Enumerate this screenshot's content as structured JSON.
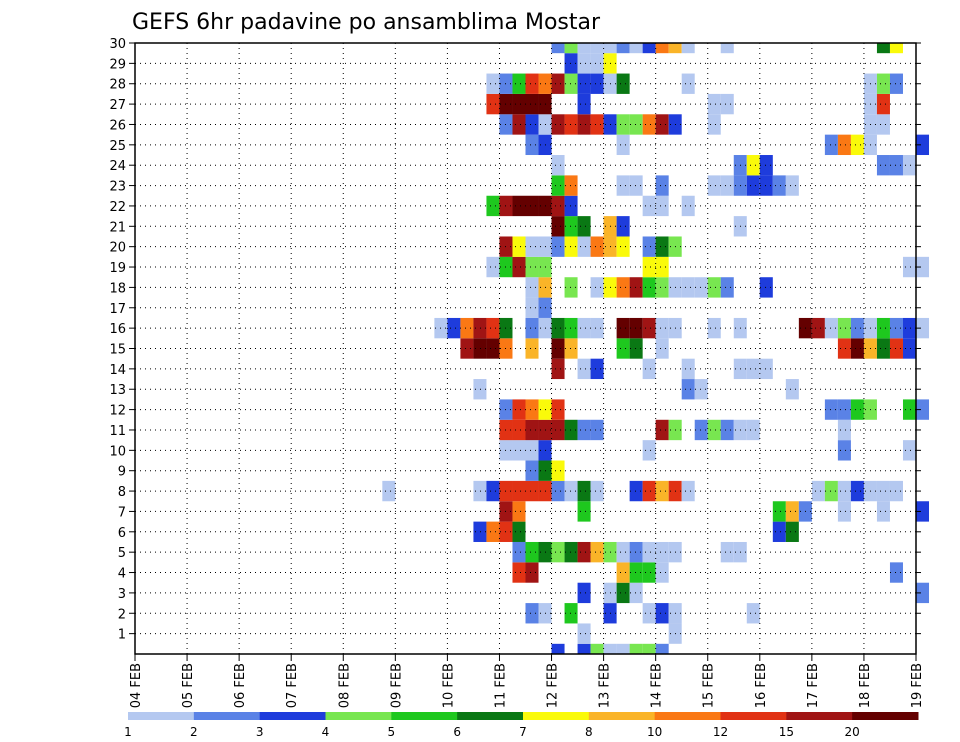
{
  "chart_data": {
    "type": "heatmap",
    "title": "GEFS 6hr padavine po ansamblima Mostar",
    "xlabel": "",
    "ylabel": "",
    "x_tick_labels": [
      "04 FEB",
      "05 FEB",
      "06 FEB",
      "07 FEB",
      "08 FEB",
      "09 FEB",
      "10 FEB",
      "11 FEB",
      "12 FEB",
      "13 FEB",
      "14 FEB",
      "15 FEB",
      "16 FEB",
      "17 FEB",
      "18 FEB",
      "19 FEB"
    ],
    "x_range_days": [
      0,
      15
    ],
    "y_tick_labels": [
      "1",
      "2",
      "3",
      "4",
      "5",
      "6",
      "7",
      "8",
      "9",
      "10",
      "11",
      "12",
      "13",
      "14",
      "15",
      "16",
      "17",
      "18",
      "19",
      "20",
      "21",
      "22",
      "23",
      "24",
      "25",
      "26",
      "27",
      "28",
      "29",
      "30"
    ],
    "y_range": [
      0,
      30
    ],
    "grid": true,
    "colorbar": {
      "levels": [
        "1",
        "2",
        "3",
        "4",
        "5",
        "6",
        "7",
        "8",
        "10",
        "12",
        "15",
        "20"
      ],
      "colors": [
        "#b4c8f0",
        "#5a82e6",
        "#1e3cdc",
        "#78e650",
        "#1ec81e",
        "#0a7814",
        "#fafa0a",
        "#fab428",
        "#fa7814",
        "#e13214",
        "#a01414",
        "#640000"
      ]
    },
    "cell_step": 0.25,
    "cells": [
      [
        8,
        0,
        3
      ],
      [
        8.5,
        0,
        3
      ],
      [
        8.75,
        0,
        4
      ],
      [
        9,
        0,
        1
      ],
      [
        9.25,
        0,
        1
      ],
      [
        9.5,
        0,
        4
      ],
      [
        9.75,
        0,
        4
      ],
      [
        10,
        0,
        2
      ],
      [
        8.5,
        1,
        1
      ],
      [
        10.25,
        1,
        1
      ],
      [
        7.5,
        2,
        2
      ],
      [
        7.75,
        2,
        1
      ],
      [
        8.25,
        2,
        5
      ],
      [
        9,
        2,
        3
      ],
      [
        9.75,
        2,
        1
      ],
      [
        10,
        2,
        3
      ],
      [
        10.25,
        2,
        1
      ],
      [
        11.75,
        2,
        1
      ],
      [
        8.5,
        3,
        3
      ],
      [
        9,
        3,
        1
      ],
      [
        9.25,
        3,
        6
      ],
      [
        9.5,
        3,
        1
      ],
      [
        15,
        3,
        2
      ],
      [
        7.25,
        4,
        10
      ],
      [
        7.5,
        4,
        11
      ],
      [
        9.25,
        4,
        8
      ],
      [
        9.5,
        4,
        5
      ],
      [
        9.75,
        4,
        5
      ],
      [
        10,
        4,
        1
      ],
      [
        14.5,
        4,
        2
      ],
      [
        7.25,
        5,
        2
      ],
      [
        7.5,
        5,
        5
      ],
      [
        7.75,
        5,
        6
      ],
      [
        8,
        5,
        4
      ],
      [
        8.25,
        5,
        6
      ],
      [
        8.5,
        5,
        11
      ],
      [
        8.75,
        5,
        8
      ],
      [
        9,
        5,
        4
      ],
      [
        9.25,
        5,
        1
      ],
      [
        9.5,
        5,
        2
      ],
      [
        9.75,
        5,
        1
      ],
      [
        10,
        5,
        1
      ],
      [
        10.25,
        5,
        1
      ],
      [
        11.25,
        5,
        1
      ],
      [
        11.5,
        5,
        1
      ],
      [
        6.5,
        6,
        3
      ],
      [
        6.75,
        6,
        9
      ],
      [
        7,
        6,
        10
      ],
      [
        7.25,
        6,
        6
      ],
      [
        12.25,
        6,
        3
      ],
      [
        12.5,
        6,
        6
      ],
      [
        7,
        7,
        11
      ],
      [
        7.25,
        7,
        9
      ],
      [
        8.5,
        7,
        5
      ],
      [
        12.25,
        7,
        5
      ],
      [
        12.5,
        7,
        8
      ],
      [
        12.75,
        7,
        2
      ],
      [
        13.5,
        7,
        1
      ],
      [
        14.25,
        7,
        1
      ],
      [
        15,
        7,
        3
      ],
      [
        4.75,
        8,
        1
      ],
      [
        6.5,
        8,
        1
      ],
      [
        6.75,
        8,
        3
      ],
      [
        7,
        8,
        10
      ],
      [
        7.25,
        8,
        10
      ],
      [
        7.5,
        8,
        10
      ],
      [
        7.75,
        8,
        10
      ],
      [
        8,
        8,
        2
      ],
      [
        8.25,
        8,
        1
      ],
      [
        8.5,
        8,
        6
      ],
      [
        8.75,
        8,
        1
      ],
      [
        9.5,
        8,
        3
      ],
      [
        9.75,
        8,
        10
      ],
      [
        10,
        8,
        8
      ],
      [
        10.25,
        8,
        10
      ],
      [
        10.5,
        8,
        1
      ],
      [
        13,
        8,
        1
      ],
      [
        13.25,
        8,
        4
      ],
      [
        13.5,
        8,
        1
      ],
      [
        13.75,
        8,
        3
      ],
      [
        14,
        8,
        1
      ],
      [
        14.25,
        8,
        1
      ],
      [
        14.5,
        8,
        1
      ],
      [
        7.5,
        9,
        2
      ],
      [
        7.75,
        9,
        6
      ],
      [
        8,
        9,
        7
      ],
      [
        7,
        10,
        1
      ],
      [
        7.25,
        10,
        1
      ],
      [
        7.5,
        10,
        1
      ],
      [
        7.75,
        10,
        3
      ],
      [
        9.75,
        10,
        1
      ],
      [
        13.5,
        10,
        2
      ],
      [
        14.75,
        10,
        1
      ],
      [
        7,
        11,
        10
      ],
      [
        7.25,
        11,
        10
      ],
      [
        7.5,
        11,
        11
      ],
      [
        7.75,
        11,
        11
      ],
      [
        8,
        11,
        11
      ],
      [
        8.25,
        11,
        6
      ],
      [
        8.5,
        11,
        2
      ],
      [
        8.75,
        11,
        2
      ],
      [
        10,
        11,
        11
      ],
      [
        10.25,
        11,
        4
      ],
      [
        10.75,
        11,
        2
      ],
      [
        11,
        11,
        4
      ],
      [
        11.25,
        11,
        2
      ],
      [
        11.5,
        11,
        1
      ],
      [
        11.75,
        11,
        1
      ],
      [
        13.5,
        11,
        1
      ],
      [
        7,
        12,
        2
      ],
      [
        7.25,
        12,
        10
      ],
      [
        7.5,
        12,
        9
      ],
      [
        7.75,
        12,
        7
      ],
      [
        8,
        12,
        10
      ],
      [
        13.25,
        12,
        2
      ],
      [
        13.5,
        12,
        2
      ],
      [
        13.75,
        12,
        5
      ],
      [
        14,
        12,
        4
      ],
      [
        14.75,
        12,
        5
      ],
      [
        15,
        12,
        2
      ],
      [
        6.5,
        13,
        1
      ],
      [
        10.5,
        13,
        2
      ],
      [
        10.75,
        13,
        1
      ],
      [
        12.5,
        13,
        1
      ],
      [
        8,
        14,
        11
      ],
      [
        8.5,
        14,
        1
      ],
      [
        8.75,
        14,
        3
      ],
      [
        9.75,
        14,
        1
      ],
      [
        10.5,
        14,
        1
      ],
      [
        11.5,
        14,
        1
      ],
      [
        11.75,
        14,
        1
      ],
      [
        12,
        14,
        1
      ],
      [
        6.25,
        15,
        11
      ],
      [
        6.5,
        15,
        12
      ],
      [
        6.75,
        15,
        12
      ],
      [
        7,
        15,
        9
      ],
      [
        7.5,
        15,
        8
      ],
      [
        8,
        15,
        12
      ],
      [
        8.25,
        15,
        8
      ],
      [
        9.25,
        15,
        5
      ],
      [
        9.5,
        15,
        6
      ],
      [
        10,
        15,
        1
      ],
      [
        13.5,
        15,
        10
      ],
      [
        13.75,
        15,
        12
      ],
      [
        14,
        15,
        8
      ],
      [
        14.25,
        15,
        6
      ],
      [
        14.5,
        15,
        10
      ],
      [
        14.75,
        15,
        3
      ],
      [
        5.75,
        16,
        1
      ],
      [
        6,
        16,
        3
      ],
      [
        6.25,
        16,
        9
      ],
      [
        6.5,
        16,
        11
      ],
      [
        6.75,
        16,
        10
      ],
      [
        7,
        16,
        6
      ],
      [
        7.5,
        16,
        2
      ],
      [
        7.75,
        16,
        1
      ],
      [
        8,
        16,
        6
      ],
      [
        8.25,
        16,
        5
      ],
      [
        8.5,
        16,
        1
      ],
      [
        8.75,
        16,
        1
      ],
      [
        9.25,
        16,
        12
      ],
      [
        9.5,
        16,
        12
      ],
      [
        9.75,
        16,
        11
      ],
      [
        10,
        16,
        1
      ],
      [
        10.25,
        16,
        1
      ],
      [
        11,
        16,
        1
      ],
      [
        11.5,
        16,
        1
      ],
      [
        12.75,
        16,
        12
      ],
      [
        13,
        16,
        11
      ],
      [
        13.25,
        16,
        1
      ],
      [
        13.5,
        16,
        4
      ],
      [
        13.75,
        16,
        2
      ],
      [
        14,
        16,
        1
      ],
      [
        14.25,
        16,
        5
      ],
      [
        14.5,
        16,
        2
      ],
      [
        14.75,
        16,
        3
      ],
      [
        15,
        16,
        1
      ],
      [
        7.5,
        17,
        1
      ],
      [
        7.75,
        17,
        2
      ],
      [
        7.5,
        18,
        1
      ],
      [
        7.75,
        18,
        8
      ],
      [
        8.25,
        18,
        4
      ],
      [
        8.75,
        18,
        1
      ],
      [
        9,
        18,
        7
      ],
      [
        9.25,
        18,
        9
      ],
      [
        9.5,
        18,
        11
      ],
      [
        9.75,
        18,
        5
      ],
      [
        10,
        18,
        4
      ],
      [
        10.25,
        18,
        1
      ],
      [
        10.5,
        18,
        1
      ],
      [
        10.75,
        18,
        1
      ],
      [
        11,
        18,
        4
      ],
      [
        11.25,
        18,
        2
      ],
      [
        12,
        18,
        3
      ],
      [
        6.75,
        19,
        1
      ],
      [
        7,
        19,
        5
      ],
      [
        7.25,
        19,
        11
      ],
      [
        7.5,
        19,
        4
      ],
      [
        7.75,
        19,
        4
      ],
      [
        9.75,
        19,
        7
      ],
      [
        10,
        19,
        7
      ],
      [
        14.75,
        19,
        1
      ],
      [
        15,
        19,
        1
      ],
      [
        7,
        20,
        11
      ],
      [
        7.25,
        20,
        7
      ],
      [
        7.5,
        20,
        1
      ],
      [
        7.75,
        20,
        1
      ],
      [
        8,
        20,
        2
      ],
      [
        8.25,
        20,
        7
      ],
      [
        8.5,
        20,
        1
      ],
      [
        8.75,
        20,
        9
      ],
      [
        9,
        20,
        8
      ],
      [
        9.25,
        20,
        7
      ],
      [
        9.75,
        20,
        2
      ],
      [
        10,
        20,
        6
      ],
      [
        10.25,
        20,
        4
      ],
      [
        8,
        21,
        12
      ],
      [
        8.25,
        21,
        5
      ],
      [
        8.5,
        21,
        6
      ],
      [
        9,
        21,
        8
      ],
      [
        9.25,
        21,
        3
      ],
      [
        11.5,
        21,
        1
      ],
      [
        6.75,
        22,
        5
      ],
      [
        7,
        22,
        11
      ],
      [
        7.25,
        22,
        12
      ],
      [
        7.5,
        22,
        12
      ],
      [
        7.75,
        22,
        12
      ],
      [
        8,
        22,
        11
      ],
      [
        8.25,
        22,
        3
      ],
      [
        9.75,
        22,
        1
      ],
      [
        10,
        22,
        1
      ],
      [
        10.5,
        22,
        1
      ],
      [
        8,
        23,
        5
      ],
      [
        8.25,
        23,
        9
      ],
      [
        9.25,
        23,
        1
      ],
      [
        9.5,
        23,
        1
      ],
      [
        10,
        23,
        2
      ],
      [
        11,
        23,
        1
      ],
      [
        11.25,
        23,
        1
      ],
      [
        11.5,
        23,
        2
      ],
      [
        11.75,
        23,
        3
      ],
      [
        12,
        23,
        3
      ],
      [
        12.25,
        23,
        2
      ],
      [
        12.5,
        23,
        1
      ],
      [
        8,
        24,
        1
      ],
      [
        11.5,
        24,
        2
      ],
      [
        11.75,
        24,
        7
      ],
      [
        12,
        24,
        3
      ],
      [
        14.25,
        24,
        2
      ],
      [
        14.5,
        24,
        2
      ],
      [
        14.75,
        24,
        1
      ],
      [
        7.5,
        25,
        2
      ],
      [
        7.75,
        25,
        3
      ],
      [
        9.25,
        25,
        1
      ],
      [
        13.25,
        25,
        2
      ],
      [
        13.5,
        25,
        9
      ],
      [
        13.75,
        25,
        7
      ],
      [
        14,
        25,
        1
      ],
      [
        15,
        25,
        3
      ],
      [
        7,
        26,
        2
      ],
      [
        7.25,
        26,
        11
      ],
      [
        7.5,
        26,
        3
      ],
      [
        7.75,
        26,
        1
      ],
      [
        8,
        26,
        11
      ],
      [
        8.25,
        26,
        10
      ],
      [
        8.5,
        26,
        11
      ],
      [
        8.75,
        26,
        10
      ],
      [
        9,
        26,
        3
      ],
      [
        9.25,
        26,
        4
      ],
      [
        9.5,
        26,
        4
      ],
      [
        9.75,
        26,
        9
      ],
      [
        10,
        26,
        11
      ],
      [
        10.25,
        26,
        3
      ],
      [
        11,
        26,
        1
      ],
      [
        14,
        26,
        1
      ],
      [
        14.25,
        26,
        1
      ],
      [
        6.75,
        27,
        10
      ],
      [
        7,
        27,
        12
      ],
      [
        7.25,
        27,
        12
      ],
      [
        7.5,
        27,
        12
      ],
      [
        7.75,
        27,
        12
      ],
      [
        8.5,
        27,
        3
      ],
      [
        11,
        27,
        1
      ],
      [
        11.25,
        27,
        1
      ],
      [
        14,
        27,
        1
      ],
      [
        14.25,
        27,
        10
      ],
      [
        6.75,
        28,
        1
      ],
      [
        7,
        28,
        2
      ],
      [
        7.25,
        28,
        5
      ],
      [
        7.5,
        28,
        10
      ],
      [
        7.75,
        28,
        9
      ],
      [
        8,
        28,
        11
      ],
      [
        8.25,
        28,
        4
      ],
      [
        8.5,
        28,
        3
      ],
      [
        8.75,
        28,
        3
      ],
      [
        9,
        28,
        1
      ],
      [
        9.25,
        28,
        6
      ],
      [
        10.5,
        28,
        1
      ],
      [
        14,
        28,
        1
      ],
      [
        14.25,
        28,
        4
      ],
      [
        14.5,
        28,
        2
      ],
      [
        8.25,
        29,
        3
      ],
      [
        8.5,
        29,
        1
      ],
      [
        8.75,
        29,
        1
      ],
      [
        9,
        29,
        7
      ],
      [
        8,
        30,
        2
      ],
      [
        8.25,
        30,
        4
      ],
      [
        8.5,
        30,
        1
      ],
      [
        8.75,
        30,
        1
      ],
      [
        9,
        30,
        1
      ],
      [
        9.25,
        30,
        2
      ],
      [
        9.5,
        30,
        1
      ],
      [
        9.75,
        30,
        3
      ],
      [
        10,
        30,
        9
      ],
      [
        10.25,
        30,
        8
      ],
      [
        10.5,
        30,
        1
      ],
      [
        11.25,
        30,
        1
      ],
      [
        14.25,
        30,
        6
      ],
      [
        14.5,
        30,
        7
      ]
    ]
  }
}
